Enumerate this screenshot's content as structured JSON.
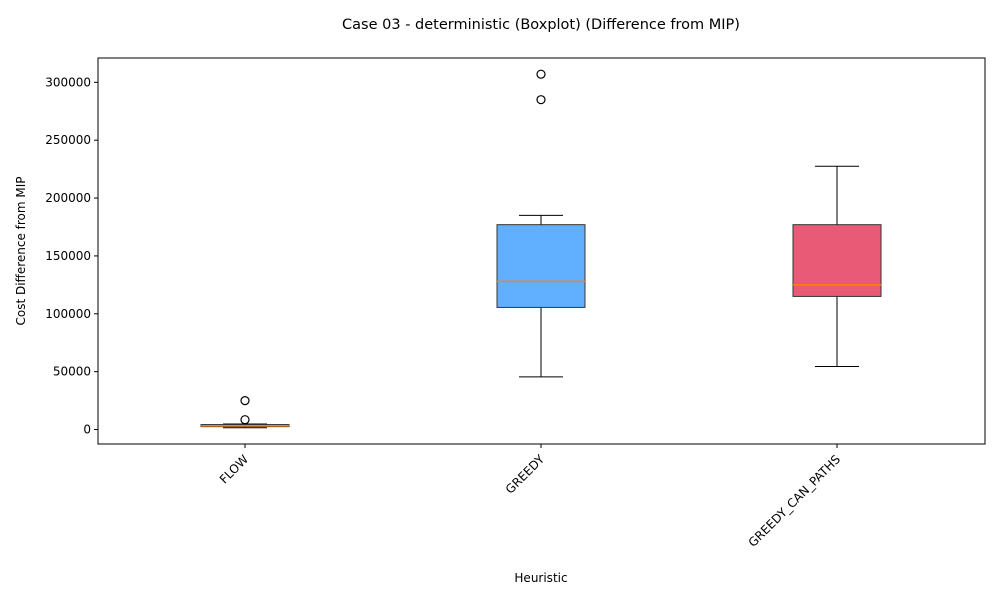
{
  "chart_data": {
    "type": "boxplot",
    "title": "Case 03 - deterministic (Boxplot) (Difference from MIP)",
    "xlabel": "Heuristic",
    "ylabel": "Cost Difference from MIP",
    "ylim": [
      -12500,
      321000
    ],
    "yticks": [
      0,
      50000,
      100000,
      150000,
      200000,
      250000,
      300000
    ],
    "ytick_labels": [
      "0",
      "50000",
      "100000",
      "150000",
      "200000",
      "250000",
      "300000"
    ],
    "grid": false,
    "median_color": "#ff7f0e",
    "categories": [
      "FLOW",
      "GREEDY",
      "GREEDY_CAN_PATHS"
    ],
    "boxes": [
      {
        "label": "FLOW",
        "color": "#ff9f40",
        "whisker_low": 1500,
        "q1": 2500,
        "median": 3200,
        "q3": 4300,
        "whisker_high": 4800,
        "outliers": [
          8500,
          25000
        ]
      },
      {
        "label": "GREEDY",
        "color": "#60b0ff",
        "whisker_low": 45500,
        "q1": 105500,
        "median": 128000,
        "q3": 177000,
        "whisker_high": 185000,
        "outliers": [
          285000,
          307000
        ]
      },
      {
        "label": "GREEDY_CAN_PATHS",
        "color": "#e85a76",
        "whisker_low": 54500,
        "q1": 115000,
        "median": 125000,
        "q3": 177000,
        "whisker_high": 227500,
        "outliers": []
      }
    ]
  }
}
